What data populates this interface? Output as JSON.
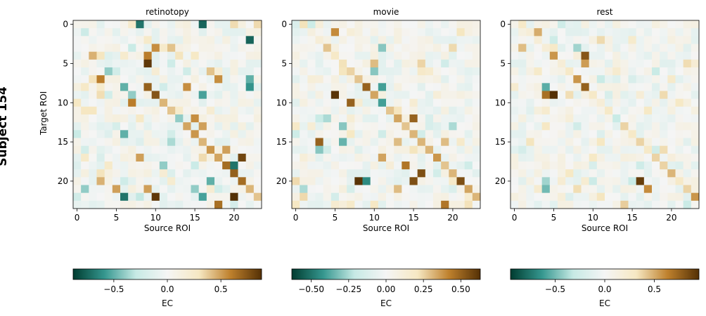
{
  "suptitle": "Subject 154",
  "colors": {
    "cmap": [
      "#003c30",
      "#35978f",
      "#c7eae5",
      "#f5f5f5",
      "#f6e8c3",
      "#bf812d",
      "#543005"
    ]
  },
  "chart_data": [
    {
      "type": "heatmap",
      "title": "retinotopy",
      "xlabel": "Source ROI",
      "ylabel": "Target ROI",
      "xticks": [
        0,
        5,
        10,
        15,
        20
      ],
      "yticks": [
        0,
        5,
        10,
        15,
        20
      ],
      "n": 24,
      "clim": [
        -0.88,
        0.88
      ],
      "diagonal": [
        0,
        0,
        0,
        0,
        0,
        0,
        0,
        0,
        0.8,
        0.85,
        0.5,
        0.45,
        0.3,
        0.55,
        0.6,
        0.5,
        0.6,
        0.55,
        0.75,
        0.8,
        0.75,
        0.5,
        0.45,
        0.5
      ],
      "cells": [
        [
          8,
          0,
          -0.7
        ],
        [
          16,
          0,
          -0.75
        ],
        [
          22,
          2,
          -0.75
        ],
        [
          9,
          4,
          0.6
        ],
        [
          9,
          5,
          0.85
        ],
        [
          10,
          3,
          0.55
        ],
        [
          12,
          3,
          0.4
        ],
        [
          16,
          9,
          -0.55
        ],
        [
          22,
          7,
          -0.5
        ],
        [
          22,
          8,
          -0.6
        ],
        [
          6,
          8,
          -0.5
        ],
        [
          7,
          9,
          -0.4
        ],
        [
          7,
          10,
          0.6
        ],
        [
          14,
          8,
          0.55
        ],
        [
          6,
          14,
          -0.5
        ],
        [
          15,
          12,
          0.55
        ],
        [
          16,
          13,
          0.5
        ],
        [
          21,
          17,
          0.8
        ],
        [
          20,
          18,
          -0.7
        ],
        [
          19,
          16,
          0.5
        ],
        [
          17,
          20,
          -0.5
        ],
        [
          3,
          20,
          0.45
        ],
        [
          5,
          21,
          0.5
        ],
        [
          6,
          22,
          -0.7
        ],
        [
          10,
          22,
          0.85
        ],
        [
          8,
          22,
          -0.3
        ],
        [
          20,
          22,
          0.95
        ],
        [
          18,
          23,
          0.65
        ],
        [
          16,
          22,
          -0.55
        ],
        [
          9,
          21,
          0.5
        ],
        [
          15,
          21,
          -0.4
        ],
        [
          3,
          7,
          0.6
        ],
        [
          4,
          6,
          -0.4
        ],
        [
          13,
          12,
          -0.4
        ],
        [
          1,
          21,
          -0.4
        ],
        [
          11,
          18,
          -0.4
        ],
        [
          8,
          17,
          0.5
        ],
        [
          18,
          7,
          0.55
        ],
        [
          17,
          6,
          0.4
        ],
        [
          12,
          15,
          -0.35
        ],
        [
          2,
          4,
          0.45
        ]
      ],
      "cbar_ticks": [
        -0.5,
        0.0,
        0.5
      ],
      "cbar_tick_labels": [
        "−0.5",
        "0.0",
        "0.5"
      ],
      "cbar_label": "EC"
    },
    {
      "type": "heatmap",
      "title": "movie",
      "xlabel": "Source ROI",
      "ylabel": "",
      "xticks": [
        0,
        5,
        10,
        15,
        20
      ],
      "yticks": [
        0,
        5,
        10,
        15,
        20
      ],
      "n": 24,
      "clim": [
        -0.63,
        0.63
      ],
      "diagonal": [
        0.35,
        0.15,
        0.2,
        0.45,
        0.3,
        0.35,
        0.4,
        0.45,
        0.5,
        0.55,
        0.55,
        0.45,
        0.55,
        0.45,
        0.5,
        0.5,
        0.5,
        0.6,
        0.45,
        0.5,
        0.45,
        0.55,
        0.5,
        0.45
      ],
      "cells": [
        [
          5,
          9,
          0.62
        ],
        [
          9,
          8,
          0.5
        ],
        [
          11,
          8,
          -0.4
        ],
        [
          7,
          10,
          0.5
        ],
        [
          11,
          10,
          -0.4
        ],
        [
          15,
          12,
          0.5
        ],
        [
          3,
          15,
          0.5
        ],
        [
          6,
          15,
          -0.35
        ],
        [
          11,
          17,
          0.35
        ],
        [
          14,
          18,
          0.45
        ],
        [
          16,
          19,
          0.55
        ],
        [
          8,
          20,
          0.62
        ],
        [
          9,
          20,
          -0.45
        ],
        [
          15,
          20,
          0.55
        ],
        [
          21,
          20,
          0.55
        ],
        [
          19,
          23,
          0.45
        ],
        [
          3,
          16,
          -0.3
        ],
        [
          11,
          3,
          -0.3
        ],
        [
          5,
          1,
          0.4
        ],
        [
          19,
          15,
          0.3
        ],
        [
          16,
          5,
          0.25
        ],
        [
          10,
          5,
          0.3
        ],
        [
          10,
          6,
          -0.3
        ],
        [
          4,
          12,
          -0.25
        ],
        [
          13,
          15,
          0.3
        ],
        [
          6,
          13,
          -0.3
        ],
        [
          7,
          14,
          0.2
        ],
        [
          20,
          13,
          -0.25
        ],
        [
          1,
          21,
          -0.25
        ],
        [
          13,
          21,
          0.3
        ]
      ],
      "cbar_ticks": [
        -0.5,
        -0.25,
        0.0,
        0.25,
        0.5
      ],
      "cbar_tick_labels": [
        "−0.50",
        "−0.25",
        "0.00",
        "0.25",
        "0.50"
      ],
      "cbar_label": "EC"
    },
    {
      "type": "heatmap",
      "title": "rest",
      "xlabel": "Source ROI",
      "ylabel": "",
      "xticks": [
        0,
        5,
        10,
        15,
        20
      ],
      "yticks": [
        0,
        5,
        10,
        15,
        20
      ],
      "n": 24,
      "clim": [
        -0.95,
        0.95
      ],
      "diagonal": [
        0.3,
        0.2,
        0.2,
        0.2,
        0.6,
        0.2,
        0.3,
        0.6,
        0.8,
        0.3,
        0.2,
        0.3,
        0.3,
        0.4,
        0.3,
        0.4,
        0.3,
        0.4,
        0.4,
        0.5,
        0.3,
        0.4,
        0.6,
        0.3
      ],
      "cells": [
        [
          4,
          9,
          0.7
        ],
        [
          5,
          9,
          0.95
        ],
        [
          9,
          4,
          0.8
        ],
        [
          9,
          5,
          0.55
        ],
        [
          4,
          8,
          -0.55
        ],
        [
          3,
          1,
          0.5
        ],
        [
          1,
          3,
          0.45
        ],
        [
          8,
          3,
          -0.4
        ],
        [
          16,
          20,
          0.9
        ],
        [
          17,
          21,
          0.6
        ],
        [
          14,
          23,
          0.4
        ],
        [
          19,
          16,
          0.35
        ],
        [
          22,
          5,
          0.35
        ],
        [
          4,
          21,
          -0.5
        ],
        [
          4,
          20,
          -0.4
        ],
        [
          13,
          12,
          -0.3
        ],
        [
          21,
          10,
          0.3
        ],
        [
          8,
          13,
          -0.25
        ],
        [
          18,
          16,
          -0.25
        ],
        [
          10,
          17,
          0.3
        ]
      ],
      "cbar_ticks": [
        -0.5,
        0.0,
        0.5
      ],
      "cbar_tick_labels": [
        "−0.5",
        "0.0",
        "0.5"
      ],
      "cbar_label": "EC"
    }
  ]
}
